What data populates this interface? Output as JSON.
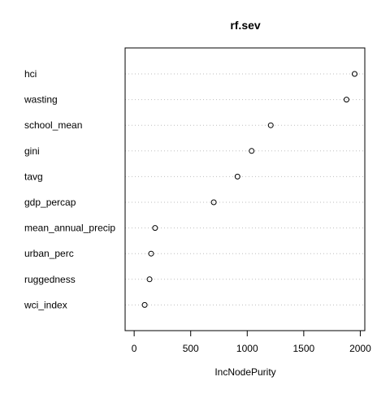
{
  "chart_data": {
    "type": "scatter",
    "title": "rf.sev",
    "xlabel": "IncNodePurity",
    "ylabel": "",
    "xlim": [
      -80,
      2040
    ],
    "x_ticks": [
      0,
      500,
      1000,
      1500,
      2000
    ],
    "categories": [
      "hci",
      "wasting",
      "school_mean",
      "gini",
      "tavg",
      "gdp_percap",
      "mean_annual_precip",
      "urban_perc",
      "ruggedness",
      "wci_index"
    ],
    "values": [
      1950,
      1878,
      1208,
      1039,
      914,
      704,
      185,
      150,
      136,
      93
    ],
    "grid": "horizontal dotted",
    "legend": "none",
    "colors": {
      "points": "#000000",
      "grid": "#bebebe",
      "frame": "#000000"
    }
  }
}
